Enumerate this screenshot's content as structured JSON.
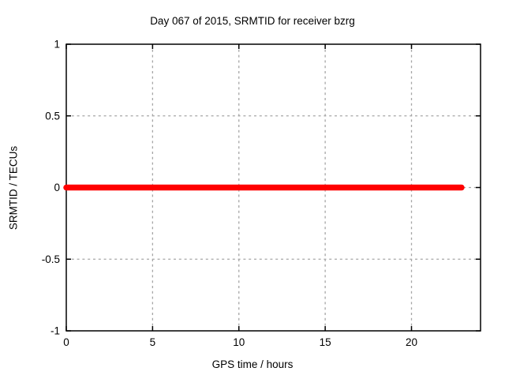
{
  "page": {
    "background": "#ffffff"
  },
  "chart": {
    "title": "Day 067 of 2015, SRMTID for receiver bzrg",
    "xlabel": "GPS time / hours",
    "ylabel": "SRMTID / TECUs"
  },
  "chart_data": {
    "type": "line",
    "title": "Day 067 of 2015, SRMTID for receiver bzrg",
    "xlabel": "GPS time / hours",
    "ylabel": "SRMTID / TECUs",
    "xlim": [
      0,
      24
    ],
    "ylim": [
      -1,
      1
    ],
    "x_ticks": [
      0,
      5,
      10,
      15,
      20
    ],
    "x_tick_labels": [
      "0",
      "5",
      "10",
      "15",
      "20"
    ],
    "y_ticks": [
      -1,
      -0.5,
      0,
      0.5,
      1
    ],
    "y_tick_labels": [
      "-1",
      "-0.5",
      "0",
      "0.5",
      "1"
    ],
    "grid": true,
    "grid_style": "dashed",
    "legend": false,
    "series": [
      {
        "name": "SRMTID",
        "color": "#ff0000",
        "linewidth": 7.5,
        "x": [
          0,
          22.9
        ],
        "y": [
          0,
          0
        ]
      }
    ]
  },
  "colors": {
    "background": "#ffffff",
    "axis": "#000000",
    "grid": "#a6a6a6",
    "text": "#000000",
    "series1": "#ff0000"
  }
}
